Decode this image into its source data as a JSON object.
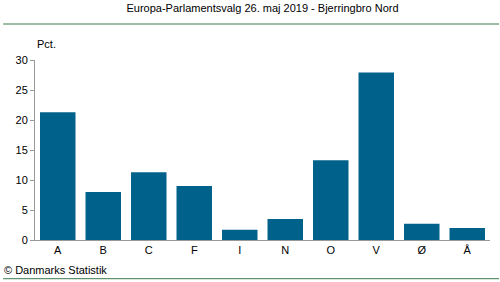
{
  "chart_data": {
    "type": "bar",
    "title": "Europa-Parlamentsvalg 26. maj 2019 - Bjerringbro Nord",
    "y_label": "Pct.",
    "annotations": [
      "© Danmarks Statistik"
    ],
    "categories": [
      "A",
      "B",
      "C",
      "F",
      "I",
      "N",
      "O",
      "V",
      "Ø",
      "Å"
    ],
    "values": [
      21.3,
      8.0,
      11.3,
      9.0,
      1.7,
      3.5,
      13.3,
      27.9,
      2.7,
      2.0
    ],
    "color": "#00628b",
    "ylim": [
      0,
      30
    ],
    "yticks": [
      0,
      5,
      10,
      15,
      20,
      25,
      30
    ],
    "grid": false
  }
}
